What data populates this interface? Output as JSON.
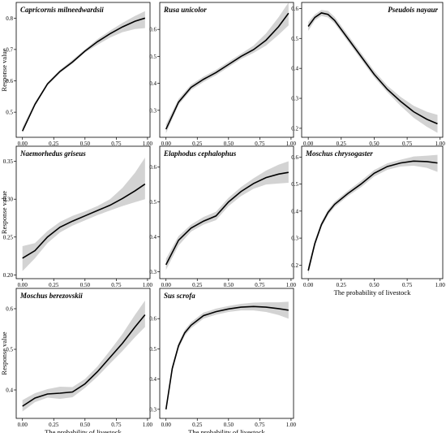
{
  "colors": {
    "line": "#000000",
    "band": "#d3d3d3"
  },
  "chart_data": [
    {
      "type": "line",
      "title": "Capricornis milneedwardsii",
      "xlabel": "",
      "ylabel": "Response value",
      "xlim": [
        -0.05,
        1.02
      ],
      "ylim": [
        0.42,
        0.85
      ],
      "x_ticks": [
        0.0,
        0.25,
        0.5,
        0.75,
        1.0
      ],
      "x_tick_labels": [
        "0.00",
        "0.25",
        "0.50",
        "0.75",
        "1.00"
      ],
      "y_ticks": [
        0.5,
        0.6,
        0.7,
        0.8
      ],
      "y_tick_labels": [
        "0.5",
        "0.6",
        "0.7",
        "0.8"
      ],
      "x": [
        0,
        0.1,
        0.2,
        0.3,
        0.4,
        0.5,
        0.6,
        0.7,
        0.8,
        0.9,
        0.98
      ],
      "y": [
        0.44,
        0.525,
        0.59,
        0.63,
        0.66,
        0.695,
        0.725,
        0.75,
        0.772,
        0.79,
        0.8
      ],
      "lower": [
        0.435,
        0.52,
        0.585,
        0.625,
        0.655,
        0.69,
        0.715,
        0.738,
        0.755,
        0.765,
        0.768
      ],
      "upper": [
        0.452,
        0.532,
        0.595,
        0.635,
        0.667,
        0.7,
        0.733,
        0.76,
        0.785,
        0.807,
        0.822
      ]
    },
    {
      "type": "line",
      "title": "Rusa unicolor",
      "xlabel": "",
      "ylabel": "",
      "xlim": [
        -0.05,
        1.02
      ],
      "ylim": [
        0.2,
        0.7
      ],
      "x_ticks": [
        0.0,
        0.25,
        0.5,
        0.75,
        1.0
      ],
      "x_tick_labels": [
        "0.00",
        "0.25",
        "0.50",
        "0.75",
        "1.00"
      ],
      "y_ticks": [
        0.3,
        0.4,
        0.5,
        0.6
      ],
      "y_tick_labels": [
        "0.3",
        "0.4",
        "0.5",
        "0.6"
      ],
      "x": [
        0,
        0.1,
        0.2,
        0.3,
        0.4,
        0.5,
        0.6,
        0.7,
        0.8,
        0.9,
        0.98
      ],
      "y": [
        0.23,
        0.33,
        0.385,
        0.415,
        0.44,
        0.47,
        0.5,
        0.525,
        0.56,
        0.61,
        0.66
      ],
      "lower": [
        0.215,
        0.32,
        0.375,
        0.405,
        0.43,
        0.46,
        0.49,
        0.513,
        0.54,
        0.58,
        0.615
      ],
      "upper": [
        0.248,
        0.342,
        0.395,
        0.425,
        0.45,
        0.48,
        0.51,
        0.54,
        0.585,
        0.645,
        0.7
      ]
    },
    {
      "type": "line",
      "title": "Pseudois nayaur",
      "xlabel": "",
      "ylabel": "",
      "xlim": [
        -0.05,
        1.02
      ],
      "ylim": [
        0.17,
        0.62
      ],
      "x_ticks": [
        0.0,
        0.25,
        0.5,
        0.75,
        1.0
      ],
      "x_tick_labels": [
        "0.00",
        "0.25",
        "0.50",
        "0.75",
        "1.00"
      ],
      "y_ticks": [
        0.2,
        0.3,
        0.4,
        0.5,
        0.6
      ],
      "y_tick_labels": [
        "0.2",
        "0.3",
        "0.4",
        "0.5",
        "0.6"
      ],
      "x": [
        0,
        0.05,
        0.1,
        0.15,
        0.2,
        0.3,
        0.4,
        0.5,
        0.6,
        0.7,
        0.8,
        0.9,
        0.98
      ],
      "y": [
        0.54,
        0.57,
        0.585,
        0.58,
        0.56,
        0.5,
        0.44,
        0.38,
        0.33,
        0.29,
        0.255,
        0.23,
        0.215
      ],
      "lower": [
        0.525,
        0.56,
        0.575,
        0.57,
        0.55,
        0.49,
        0.43,
        0.37,
        0.32,
        0.275,
        0.235,
        0.205,
        0.185
      ],
      "upper": [
        0.555,
        0.58,
        0.595,
        0.592,
        0.572,
        0.512,
        0.452,
        0.392,
        0.342,
        0.305,
        0.275,
        0.255,
        0.245
      ]
    },
    {
      "type": "line",
      "title": "Naemorhedus griseus",
      "xlabel": "",
      "ylabel": "Response value",
      "xlim": [
        -0.05,
        1.02
      ],
      "ylim": [
        0.195,
        0.37
      ],
      "x_ticks": [
        0.0,
        0.25,
        0.5,
        0.75,
        1.0
      ],
      "x_tick_labels": [
        "0.00",
        "0.25",
        "0.50",
        "0.75",
        "1.00"
      ],
      "y_ticks": [
        0.2,
        0.25,
        0.3,
        0.35
      ],
      "y_tick_labels": [
        "0.20",
        "0.25",
        "0.30",
        "0.35"
      ],
      "x": [
        0,
        0.1,
        0.2,
        0.3,
        0.4,
        0.5,
        0.6,
        0.7,
        0.8,
        0.9,
        0.98
      ],
      "y": [
        0.222,
        0.232,
        0.25,
        0.263,
        0.271,
        0.278,
        0.285,
        0.292,
        0.301,
        0.311,
        0.32
      ],
      "lower": [
        0.205,
        0.222,
        0.242,
        0.256,
        0.265,
        0.272,
        0.279,
        0.285,
        0.291,
        0.296,
        0.3
      ],
      "upper": [
        0.238,
        0.242,
        0.258,
        0.27,
        0.278,
        0.284,
        0.291,
        0.3,
        0.315,
        0.335,
        0.355
      ]
    },
    {
      "type": "line",
      "title": "Elaphodus cephalophus",
      "xlabel": "",
      "ylabel": "",
      "xlim": [
        -0.05,
        1.02
      ],
      "ylim": [
        0.28,
        0.66
      ],
      "x_ticks": [
        0.0,
        0.25,
        0.5,
        0.75,
        1.0
      ],
      "x_tick_labels": [
        "0.00",
        "0.25",
        "0.50",
        "0.75",
        "1.00"
      ],
      "y_ticks": [
        0.3,
        0.4,
        0.5,
        0.6
      ],
      "y_tick_labels": [
        "0.3",
        "0.4",
        "0.5",
        "0.6"
      ],
      "x": [
        0,
        0.1,
        0.2,
        0.3,
        0.4,
        0.5,
        0.6,
        0.7,
        0.8,
        0.9,
        0.98
      ],
      "y": [
        0.32,
        0.39,
        0.425,
        0.445,
        0.46,
        0.5,
        0.53,
        0.553,
        0.57,
        0.58,
        0.585
      ],
      "lower": [
        0.305,
        0.375,
        0.415,
        0.435,
        0.448,
        0.488,
        0.517,
        0.538,
        0.55,
        0.553,
        0.555
      ],
      "upper": [
        0.337,
        0.402,
        0.435,
        0.457,
        0.472,
        0.512,
        0.543,
        0.568,
        0.59,
        0.607,
        0.617
      ]
    },
    {
      "type": "line",
      "title": "Moschus chrysogaster",
      "xlabel": "The probability of livestock",
      "ylabel": "",
      "xlim": [
        -0.05,
        1.02
      ],
      "ylim": [
        0.15,
        0.64
      ],
      "x_ticks": [
        0.0,
        0.25,
        0.5,
        0.75,
        1.0
      ],
      "x_tick_labels": [
        "0.00",
        "0.25",
        "0.50",
        "0.75",
        "1.00"
      ],
      "y_ticks": [
        0.2,
        0.3,
        0.4,
        0.5,
        0.6
      ],
      "y_tick_labels": [
        "0.2",
        "0.3",
        "0.4",
        "0.5",
        "0.6"
      ],
      "x": [
        0,
        0.05,
        0.1,
        0.15,
        0.2,
        0.3,
        0.4,
        0.5,
        0.6,
        0.7,
        0.8,
        0.9,
        0.98
      ],
      "y": [
        0.18,
        0.28,
        0.35,
        0.395,
        0.425,
        0.465,
        0.5,
        0.54,
        0.565,
        0.578,
        0.585,
        0.583,
        0.578
      ],
      "lower": [
        0.165,
        0.27,
        0.34,
        0.385,
        0.415,
        0.455,
        0.488,
        0.528,
        0.553,
        0.565,
        0.568,
        0.56,
        0.545
      ],
      "upper": [
        0.197,
        0.292,
        0.36,
        0.405,
        0.435,
        0.475,
        0.512,
        0.552,
        0.577,
        0.59,
        0.602,
        0.605,
        0.608
      ]
    },
    {
      "type": "line",
      "title": "Moschus berezovskii",
      "xlabel": "The probability of livestock",
      "ylabel": "Response value",
      "xlim": [
        -0.05,
        1.02
      ],
      "ylim": [
        0.33,
        0.65
      ],
      "x_ticks": [
        0.0,
        0.25,
        0.5,
        0.75,
        1.0
      ],
      "x_tick_labels": [
        "0.00",
        "0.25",
        "0.50",
        "0.75",
        "1.00"
      ],
      "y_ticks": [
        0.4,
        0.5,
        0.6
      ],
      "y_tick_labels": [
        "0.4",
        "0.5",
        "0.6"
      ],
      "x": [
        0,
        0.1,
        0.2,
        0.3,
        0.4,
        0.5,
        0.6,
        0.7,
        0.8,
        0.9,
        0.98
      ],
      "y": [
        0.36,
        0.38,
        0.39,
        0.392,
        0.395,
        0.415,
        0.445,
        0.48,
        0.515,
        0.555,
        0.585
      ],
      "lower": [
        0.347,
        0.37,
        0.381,
        0.378,
        0.382,
        0.405,
        0.433,
        0.465,
        0.496,
        0.53,
        0.555
      ],
      "upper": [
        0.375,
        0.392,
        0.402,
        0.408,
        0.407,
        0.427,
        0.458,
        0.497,
        0.538,
        0.585,
        0.62
      ]
    },
    {
      "type": "line",
      "title": "Sus scrofa",
      "xlabel": "The probability of livestock",
      "ylabel": "",
      "xlim": [
        -0.05,
        1.02
      ],
      "ylim": [
        0.27,
        0.7
      ],
      "x_ticks": [
        0.0,
        0.25,
        0.5,
        0.75,
        1.0
      ],
      "x_tick_labels": [
        "0.00",
        "0.25",
        "0.50",
        "0.75",
        "1.00"
      ],
      "y_ticks": [
        0.3,
        0.4,
        0.5,
        0.6
      ],
      "y_tick_labels": [
        "0.3",
        "0.4",
        "0.5",
        "0.6"
      ],
      "x": [
        0,
        0.05,
        0.1,
        0.15,
        0.2,
        0.3,
        0.4,
        0.5,
        0.6,
        0.7,
        0.8,
        0.9,
        0.98
      ],
      "y": [
        0.3,
        0.435,
        0.51,
        0.553,
        0.578,
        0.61,
        0.623,
        0.632,
        0.638,
        0.64,
        0.638,
        0.633,
        0.628
      ],
      "lower": [
        0.29,
        0.425,
        0.5,
        0.543,
        0.568,
        0.6,
        0.613,
        0.622,
        0.627,
        0.627,
        0.622,
        0.612,
        0.6
      ],
      "upper": [
        0.31,
        0.445,
        0.52,
        0.563,
        0.588,
        0.62,
        0.633,
        0.642,
        0.649,
        0.653,
        0.654,
        0.654,
        0.656
      ]
    }
  ]
}
